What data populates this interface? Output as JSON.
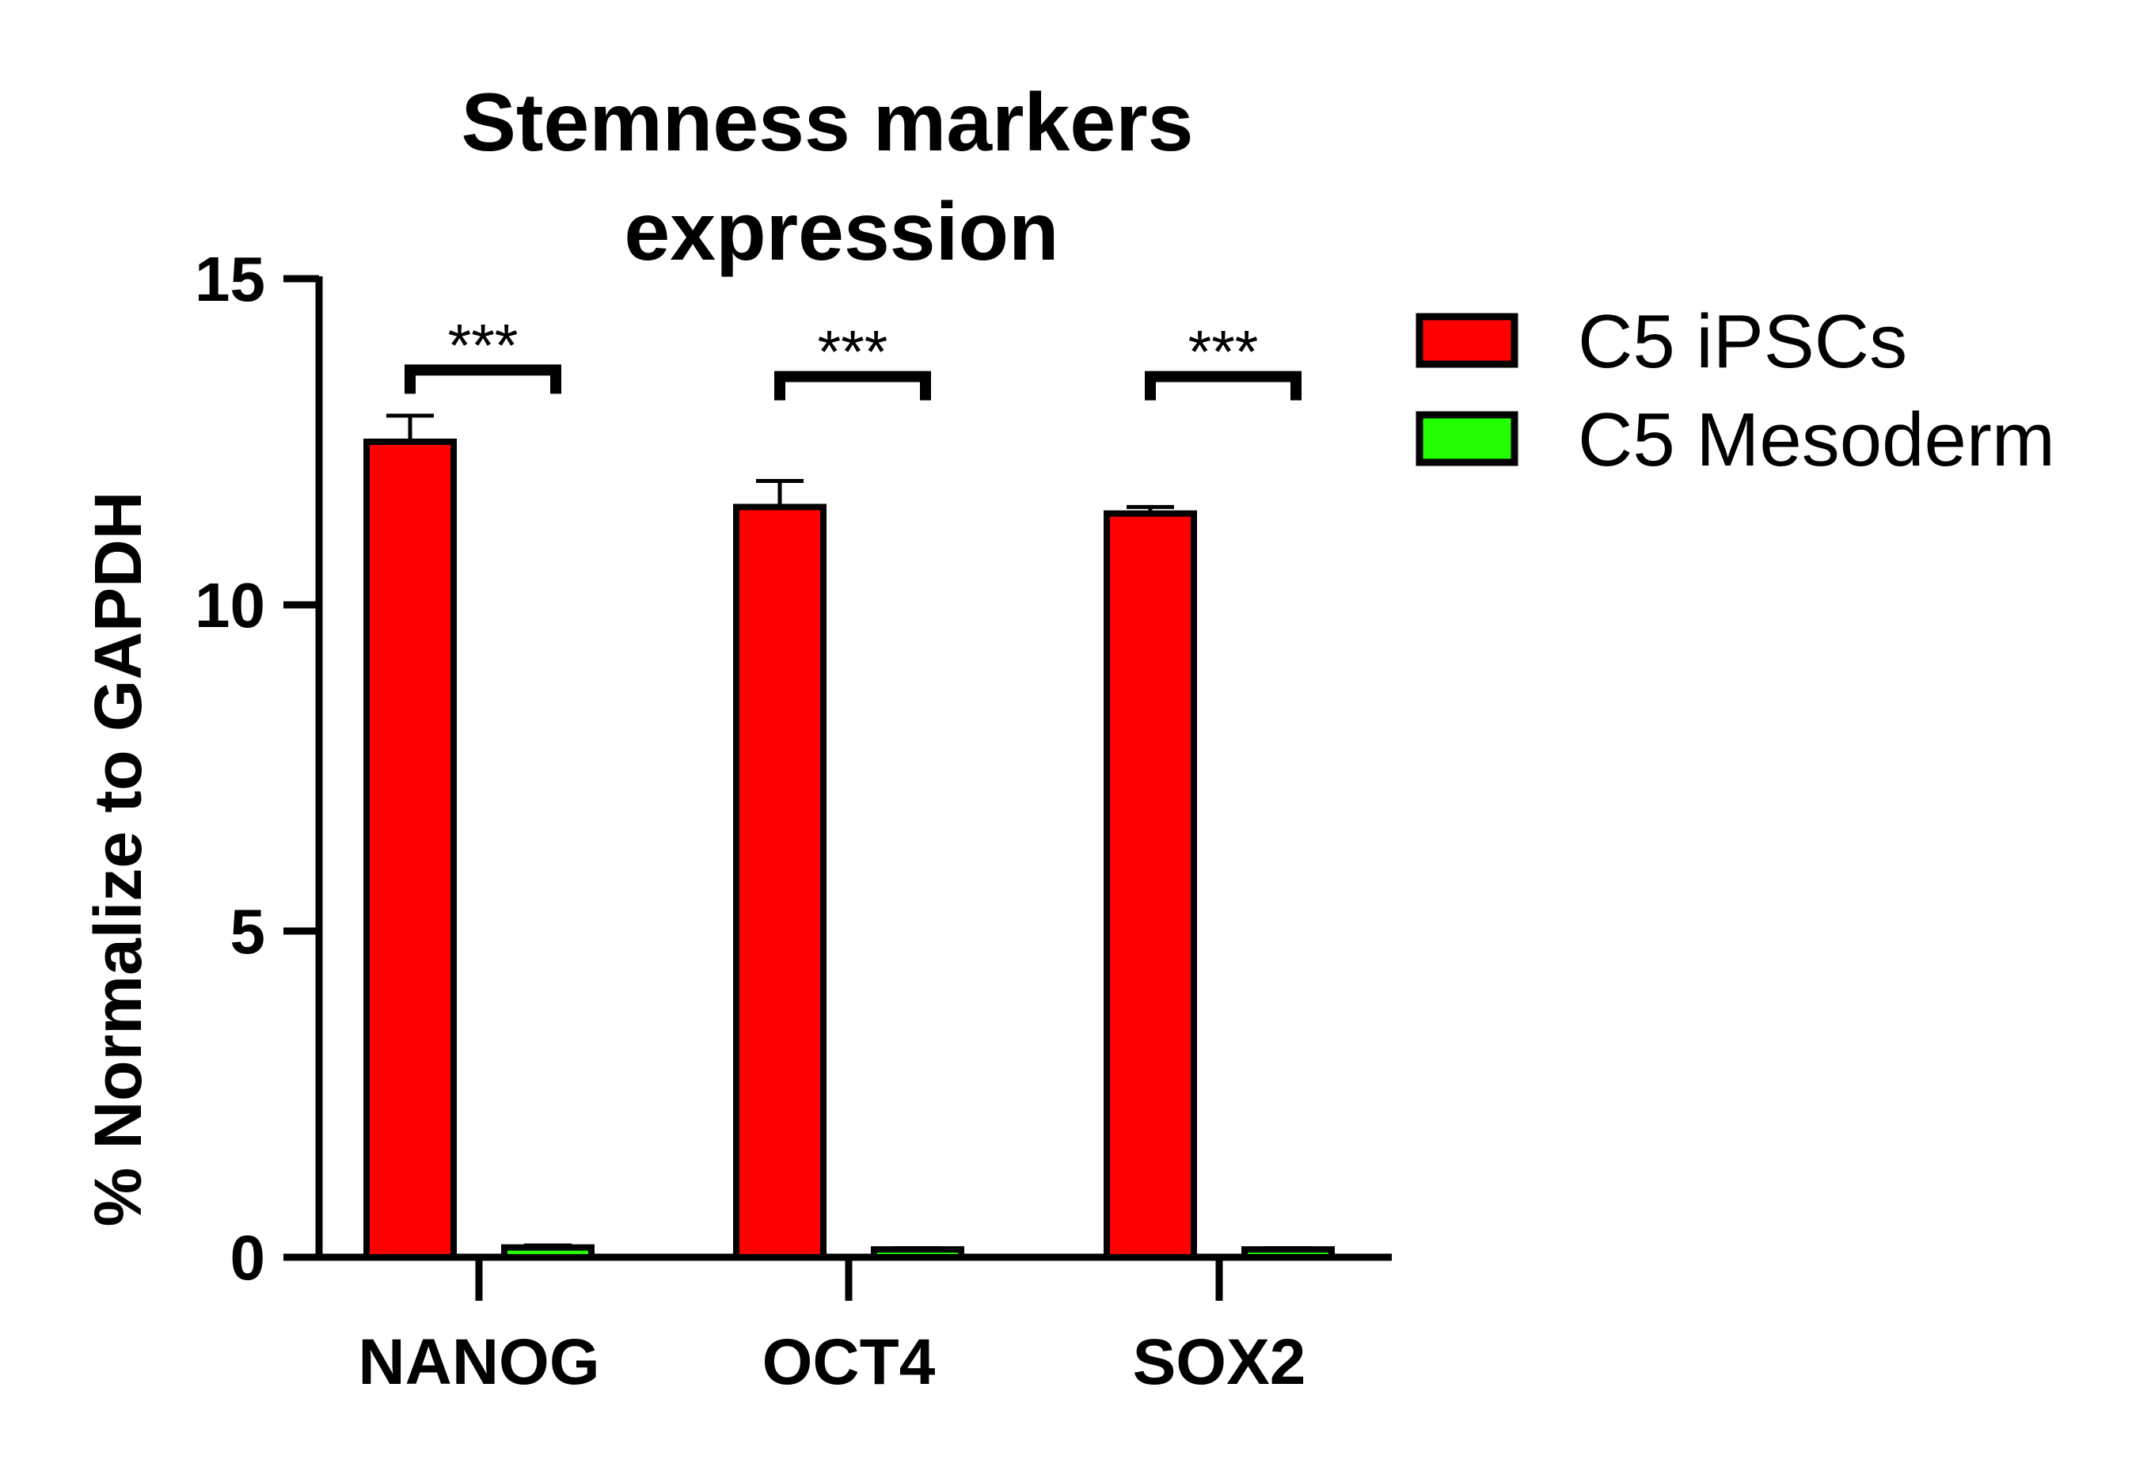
{
  "chart_data": {
    "type": "bar",
    "title": [
      "Stemness markers",
      "expression"
    ],
    "xlabel": "",
    "ylabel": "% Normalize to GAPDH",
    "ylim": [
      0,
      15
    ],
    "yticks": [
      "0",
      "5",
      "10",
      "15"
    ],
    "categories": [
      "NANOG",
      "OCT4",
      "SOX2"
    ],
    "series": [
      {
        "name": "C5 iPSCs",
        "color": "#ff0000",
        "values": [
          12.5,
          11.5,
          11.4
        ],
        "errors": [
          0.4,
          0.4,
          0.1
        ]
      },
      {
        "name": "C5 Mesoderm",
        "color": "#22ff00",
        "values": [
          0.15,
          0.12,
          0.12
        ],
        "errors": [
          0.03,
          0.02,
          0.02
        ]
      }
    ],
    "annotations": [
      {
        "category": "NANOG",
        "text": "***",
        "y": 13.6
      },
      {
        "category": "OCT4",
        "text": "***",
        "y": 13.5
      },
      {
        "category": "SOX2",
        "text": "***",
        "y": 13.5
      }
    ],
    "legend": "top-right",
    "grid": false
  }
}
